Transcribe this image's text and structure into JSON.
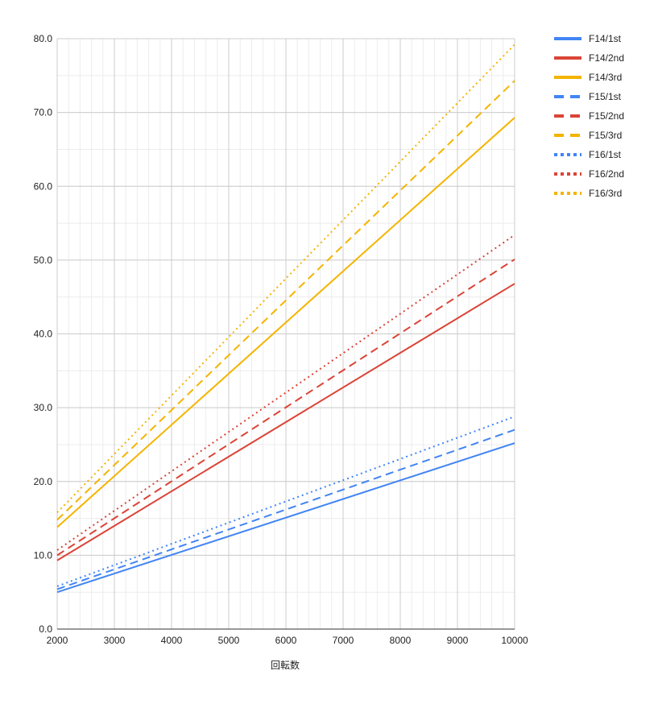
{
  "chart_data": {
    "type": "line",
    "title": "",
    "xlabel": "回転数",
    "ylabel": "",
    "xlim": [
      2000,
      10000
    ],
    "ylim": [
      0,
      80
    ],
    "x_ticks": [
      "2000",
      "3000",
      "4000",
      "5000",
      "6000",
      "7000",
      "8000",
      "9000",
      "10000"
    ],
    "y_ticks": [
      "0.0",
      "10.0",
      "20.0",
      "30.0",
      "40.0",
      "50.0",
      "60.0",
      "70.0",
      "80.0"
    ],
    "grid": true,
    "legend_position": "right",
    "x": [
      2000,
      10000
    ],
    "series": [
      {
        "name": "F14/1st",
        "values": [
          5.0,
          25.2
        ],
        "color": "#4285F4",
        "dash": "solid"
      },
      {
        "name": "F14/2nd",
        "values": [
          9.3,
          46.8
        ],
        "color": "#DB4437",
        "dash": "solid"
      },
      {
        "name": "F14/3rd",
        "values": [
          13.8,
          69.3
        ],
        "color": "#F4B400",
        "dash": "solid"
      },
      {
        "name": "F15/1st",
        "values": [
          5.4,
          27.0
        ],
        "color": "#4285F4",
        "dash": "dashed"
      },
      {
        "name": "F15/2nd",
        "values": [
          10.0,
          50.1
        ],
        "color": "#DB4437",
        "dash": "dashed"
      },
      {
        "name": "F15/3rd",
        "values": [
          14.8,
          74.3
        ],
        "color": "#F4B400",
        "dash": "dashed"
      },
      {
        "name": "F16/1st",
        "values": [
          5.8,
          28.8
        ],
        "color": "#4285F4",
        "dash": "dotted"
      },
      {
        "name": "F16/2nd",
        "values": [
          10.7,
          53.4
        ],
        "color": "#DB4437",
        "dash": "dotted"
      },
      {
        "name": "F16/3rd",
        "values": [
          15.8,
          79.2
        ],
        "color": "#F4B400",
        "dash": "dotted"
      }
    ]
  }
}
